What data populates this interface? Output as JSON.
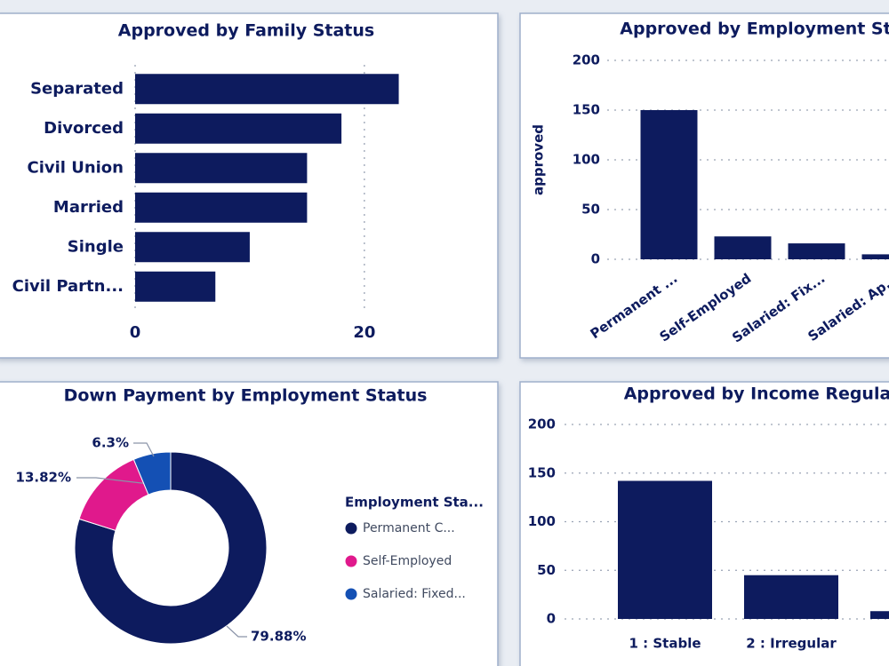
{
  "chart_data": [
    {
      "type": "bar",
      "orientation": "horizontal",
      "title": "Approved by Family Status",
      "categories": [
        "Separated",
        "Divorced",
        "Civil Union",
        "Married",
        "Single",
        "Civil Partn..."
      ],
      "values": [
        23,
        18,
        15,
        15,
        10,
        7
      ],
      "color": "#0d1b5e",
      "xlim": [
        0,
        23.5
      ],
      "xticks": [
        0,
        20
      ],
      "grid": true
    },
    {
      "type": "bar",
      "title": "Approved by Employment St",
      "y_label": "approved",
      "categories": [
        "Permanent ...",
        "Self-Employed",
        "Salaried: Fix...",
        "Salaried: Ap..."
      ],
      "values": [
        150,
        23,
        16,
        5
      ],
      "color": "#0d1b5e",
      "ylim": [
        0,
        200
      ],
      "yticks": [
        0,
        50,
        100,
        150,
        200
      ],
      "grid": true
    },
    {
      "type": "pie",
      "donut": true,
      "title": "Down Payment by Employment Status",
      "legend_title": "Employment Sta...",
      "categories": [
        "Permanent C...",
        "Self-Employed",
        "Salaried: Fixed..."
      ],
      "values": [
        79.88,
        13.82,
        6.3
      ],
      "value_labels": [
        "79.88%",
        "13.82%",
        "6.3%"
      ],
      "colors": [
        "#0d1b5e",
        "#e0198c",
        "#1450b4"
      ]
    },
    {
      "type": "bar",
      "title": "Approved by Income Regula",
      "categories": [
        "1 : Stable",
        "2 : Irregular",
        null
      ],
      "values": [
        142,
        45,
        8
      ],
      "color": "#0d1b5e",
      "ylim": [
        0,
        200
      ],
      "yticks": [
        0,
        50,
        100,
        150,
        200
      ],
      "grid": true
    }
  ]
}
